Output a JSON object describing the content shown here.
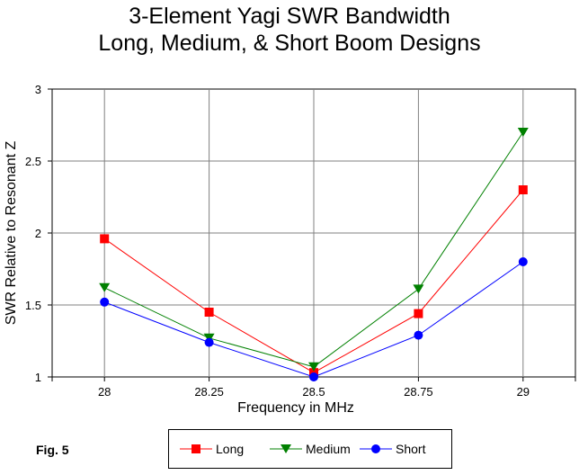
{
  "title": {
    "line1": "3-Element Yagi SWR Bandwidth",
    "line2": "Long, Medium, & Short Boom Designs"
  },
  "figure_label": "Fig. 5",
  "chart_data": {
    "type": "line",
    "title": "3-Element Yagi SWR Bandwidth Long, Medium, & Short Boom Designs",
    "xlabel": "Frequency in MHz",
    "ylabel": "SWR Relative to Resonant Z",
    "categories": [
      "28",
      "28.25",
      "28.5",
      "28.75",
      "29"
    ],
    "x": [
      28,
      28.25,
      28.5,
      28.75,
      29
    ],
    "xlim": [
      27.875,
      29.125
    ],
    "ylim": [
      1,
      3
    ],
    "yticks": [
      1,
      1.5,
      2,
      2.5,
      3
    ],
    "ytick_labels": [
      "1",
      "1.5",
      "2",
      "2.5",
      "3"
    ],
    "grid": true,
    "legend_position": "bottom",
    "series": [
      {
        "name": "Long",
        "values": [
          1.96,
          1.45,
          1.03,
          1.44,
          2.3
        ],
        "color": "#ff0000",
        "marker": "square"
      },
      {
        "name": "Medium",
        "values": [
          1.62,
          1.27,
          1.07,
          1.61,
          2.7
        ],
        "color": "#008000",
        "marker": "triangle-down"
      },
      {
        "name": "Short",
        "values": [
          1.52,
          1.24,
          1.0,
          1.29,
          1.8
        ],
        "color": "#0000ff",
        "marker": "circle"
      }
    ]
  }
}
